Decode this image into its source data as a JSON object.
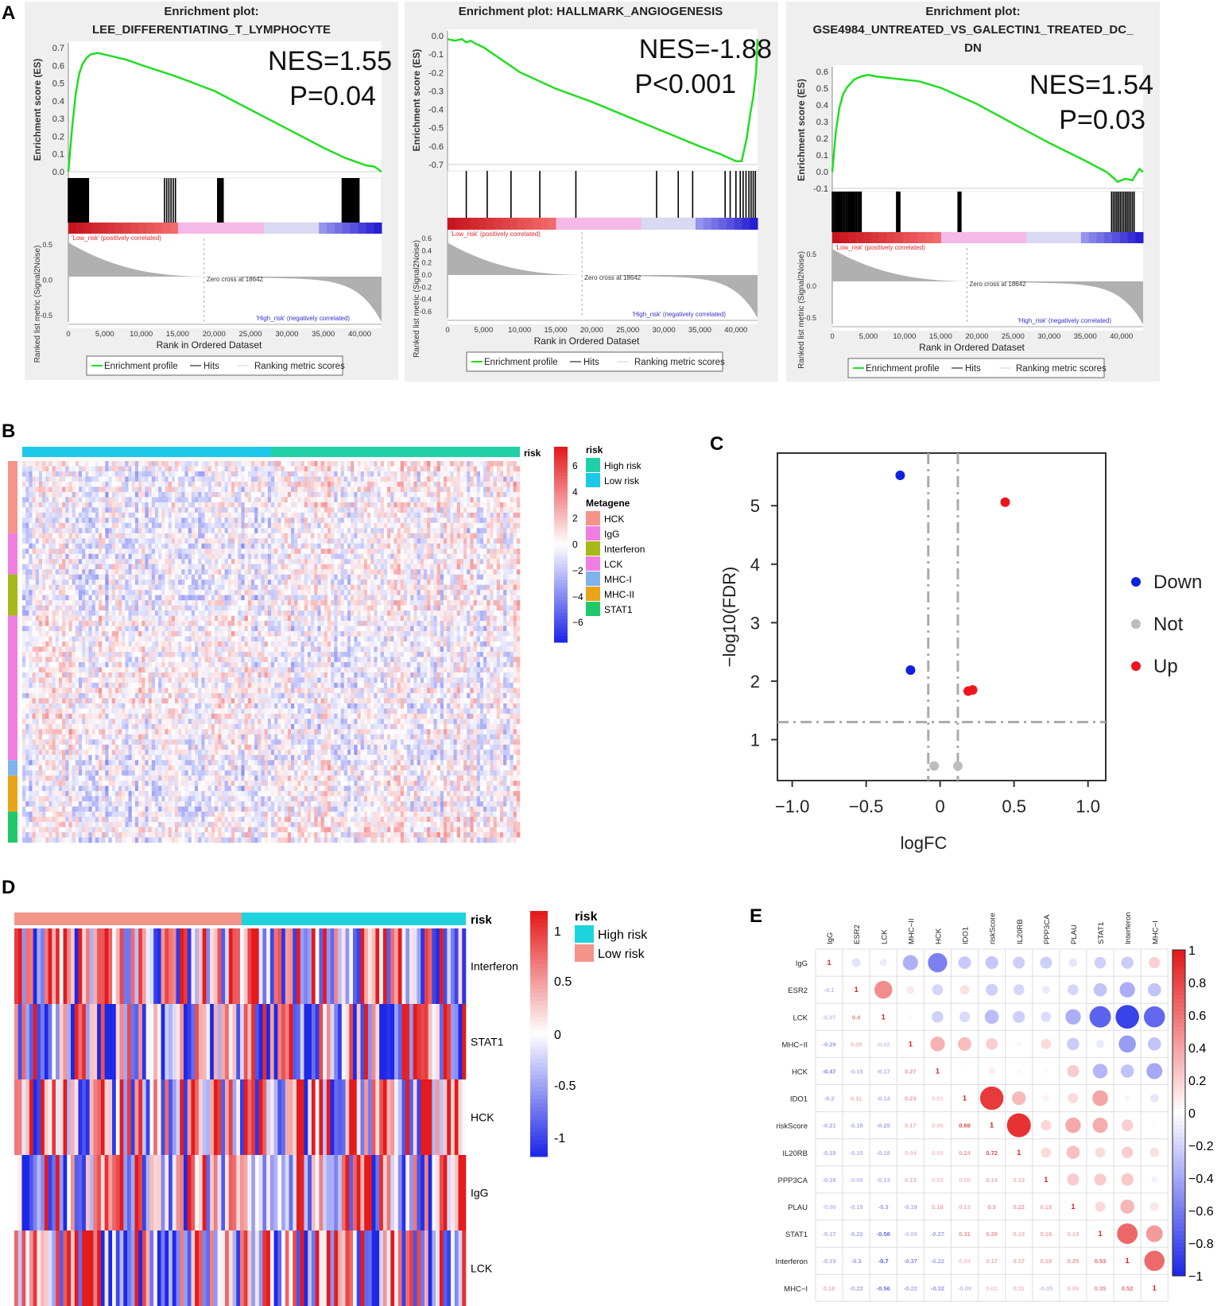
{
  "panel_labels": [
    "A",
    "B",
    "C",
    "D",
    "E"
  ],
  "colors": {
    "es_line": "#22dd22",
    "hit": "#000000",
    "metric_fill": "#b0b0b0",
    "red": "#e8262a",
    "blue": "#2630e0",
    "pink": "#f3a2e6",
    "cyan": "#1ec8e8",
    "teal": "#1fd0a8",
    "salmon": "#f5948a"
  },
  "chart_data": [
    {
      "type": "line",
      "id": "gsea1",
      "title_lines": [
        "Enrichment plot:",
        "LEE_DIFFERENTIATING_T_LYMPHOCYTE"
      ],
      "nes_text": "NES=1.55",
      "p_text": "P=0.04",
      "ylabel": "Enrichment score (ES)",
      "yticks": [
        "0.7",
        "0.6",
        "0.5",
        "0.4",
        "0.3",
        "0.2",
        "0.1",
        "0.0"
      ],
      "ylim": [
        0.0,
        0.72
      ],
      "es_x": [
        0,
        500,
        1000,
        1500,
        2000,
        2500,
        3000,
        4000,
        5000,
        6000,
        7000,
        8000,
        10000,
        15000,
        20000,
        25000,
        30000,
        35000,
        38000,
        40000,
        41000,
        42000,
        43000
      ],
      "es_y": [
        0,
        0.25,
        0.45,
        0.57,
        0.63,
        0.66,
        0.68,
        0.69,
        0.68,
        0.67,
        0.66,
        0.65,
        0.62,
        0.55,
        0.47,
        0.36,
        0.25,
        0.14,
        0.08,
        0.05,
        0.035,
        0.03,
        0.0
      ],
      "metric_ylabel": "Ranked list metric (Signal2Noise)",
      "metric_yticks": [
        "0.5",
        "0.0",
        "-0.5"
      ],
      "pos_label": "'Low_risk' (positively correlated)",
      "neg_label": "'High_risk' (negatively correlated)",
      "zero_cross": "Zero cross at 18642",
      "xlabel": "Rank in Ordered Dataset",
      "xticks": [
        "0",
        "5,000",
        "10,000",
        "15,000",
        "20,000",
        "25,000",
        "30,000",
        "35,000",
        "40,000"
      ],
      "legend": [
        "Enrichment profile",
        "Hits",
        "Ranking metric scores"
      ]
    },
    {
      "type": "line",
      "id": "gsea2",
      "title_lines": [
        "Enrichment plot: HALLMARK_ANGIOGENESIS"
      ],
      "nes_text": "NES=-1.88",
      "p_text": "P<0.001",
      "ylabel": "Enrichment score (ES)",
      "yticks": [
        "0.0",
        "-0.1",
        "-0.2",
        "-0.3",
        "-0.4",
        "-0.5",
        "-0.6",
        "-0.7"
      ],
      "ylim": [
        -0.76,
        0.02
      ],
      "es_x": [
        0,
        1000,
        2000,
        2600,
        3200,
        4000,
        5000,
        6000,
        8000,
        10000,
        15000,
        20000,
        25000,
        30000,
        35000,
        38000,
        40000,
        40800,
        41500,
        42000,
        42400,
        42800,
        43000
      ],
      "es_y": [
        0,
        -0.01,
        0.0,
        -0.02,
        -0.01,
        -0.03,
        -0.05,
        -0.08,
        -0.14,
        -0.2,
        -0.3,
        -0.38,
        -0.47,
        -0.56,
        -0.65,
        -0.7,
        -0.74,
        -0.74,
        -0.6,
        -0.45,
        -0.35,
        -0.2,
        0.0
      ],
      "metric_ylabel": "Ranked list metric (Signal2Noise)",
      "metric_yticks": [
        "0.6",
        "0.4",
        "0.2",
        "0.0",
        "-0.2",
        "-0.4",
        "-0.6"
      ],
      "pos_label": "'Low_risk' (positively correlated)",
      "neg_label": "'High_risk' (negatively correlated)",
      "zero_cross": "Zero cross at 18642",
      "xlabel": "Rank in Ordered Dataset",
      "xticks": [
        "0",
        "5,000",
        "10,000",
        "15,000",
        "20,000",
        "25,000",
        "30,000",
        "35,000",
        "40,000"
      ],
      "legend": [
        "Enrichment profile",
        "Hits",
        "Ranking metric scores"
      ]
    },
    {
      "type": "line",
      "id": "gsea3",
      "title_lines": [
        "Enrichment plot:",
        "GSE4984_UNTREATED_VS_GALECTIN1_TREATED_DC_",
        "DN"
      ],
      "nes_text": "NES=1.54",
      "p_text": "P=0.03",
      "ylabel": "Enrichment score (ES)",
      "yticks": [
        "0.6",
        "0.5",
        "0.4",
        "0.3",
        "0.2",
        "0.1",
        "0.0",
        "-0.1"
      ],
      "ylim": [
        -0.1,
        0.62
      ],
      "es_x": [
        0,
        500,
        1000,
        1500,
        2000,
        3000,
        4000,
        5000,
        6000,
        8000,
        10000,
        12000,
        15000,
        20000,
        25000,
        30000,
        35000,
        38000,
        39500,
        40500,
        41500,
        42500,
        43000
      ],
      "es_y": [
        0,
        0.25,
        0.4,
        0.48,
        0.52,
        0.57,
        0.59,
        0.6,
        0.59,
        0.58,
        0.57,
        0.56,
        0.52,
        0.42,
        0.3,
        0.18,
        0.07,
        0.0,
        -0.06,
        -0.04,
        -0.05,
        0.02,
        0.0
      ],
      "metric_ylabel": "Ranked list metric (Signal2Noise)",
      "metric_yticks": [
        "0.5",
        "0.0",
        "-0.5"
      ],
      "pos_label": "'Low_risk' (positively correlated)",
      "neg_label": "'High_risk' (negatively correlated)",
      "zero_cross": "Zero cross at 18642",
      "xlabel": "Rank in Ordered Dataset",
      "xticks": [
        "0",
        "5,000",
        "10,000",
        "15,000",
        "20,000",
        "25,000",
        "30,000",
        "35,000",
        "40,000"
      ],
      "legend": [
        "Enrichment profile",
        "Hits",
        "Ranking metric scores"
      ]
    },
    {
      "type": "heatmap",
      "id": "heatB",
      "annotation_title": "risk",
      "legend_risk_title": "risk",
      "risk_groups": [
        {
          "name": "High risk",
          "color": "#1fd0a8"
        },
        {
          "name": "Low risk",
          "color": "#1ec8e8"
        }
      ],
      "column_order": [
        "Low risk",
        "High risk"
      ],
      "legend_metagene_title": "Metagene",
      "metagenes": [
        {
          "name": "HCK",
          "color": "#f5948a",
          "rows": 14
        },
        {
          "name": "IgG",
          "color": "#f07ee0",
          "rows": 8
        },
        {
          "name": "Interferon",
          "color": "#a6b81a",
          "rows": 8
        },
        {
          "name": "LCK",
          "color": "#f07ee0",
          "rows": 28
        },
        {
          "name": "MHC-I",
          "color": "#7eb3ee",
          "rows": 3
        },
        {
          "name": "MHC-II",
          "color": "#e9a41a",
          "rows": 7
        },
        {
          "name": "STAT1",
          "color": "#1fc96a",
          "rows": 6
        }
      ],
      "scale_ticks": [
        "6",
        "4",
        "2",
        "0",
        "−2",
        "−4",
        "−6"
      ],
      "range": [
        -6,
        6
      ]
    },
    {
      "type": "scatter",
      "id": "volcano",
      "xlabel": "logFC",
      "ylabel": "−log10(FDR)",
      "xticks": [
        "−1.0",
        "−0.5",
        "0",
        "0.5",
        "1.0"
      ],
      "xtick_values": [
        -1.0,
        -0.5,
        0,
        0.5,
        1.0
      ],
      "yticks": [
        "1",
        "2",
        "3",
        "4",
        "5"
      ],
      "ytick_values": [
        1,
        2,
        3,
        4,
        5
      ],
      "xlim": [
        -1.1,
        1.12
      ],
      "ylim": [
        0.3,
        5.9
      ],
      "vlines": [
        -0.08,
        0.12
      ],
      "hline": 1.3,
      "points": [
        {
          "x": -0.27,
          "y": 5.52,
          "group": "Down"
        },
        {
          "x": -0.2,
          "y": 2.19,
          "group": "Down"
        },
        {
          "x": 0.44,
          "y": 5.06,
          "group": "Up"
        },
        {
          "x": 0.19,
          "y": 1.83,
          "group": "Up"
        },
        {
          "x": 0.22,
          "y": 1.85,
          "group": "Up"
        },
        {
          "x": -0.04,
          "y": 0.55,
          "group": "Not"
        },
        {
          "x": 0.12,
          "y": 0.55,
          "group": "Not"
        }
      ],
      "legend": [
        {
          "name": "Down",
          "color": "#1020e0"
        },
        {
          "name": "Not",
          "color": "#bdbdbd"
        },
        {
          "name": "Up",
          "color": "#f0141e"
        }
      ]
    },
    {
      "type": "heatmap",
      "id": "heatD",
      "annotation_title": "risk",
      "legend_risk_title": "risk",
      "risk_groups": [
        {
          "name": "High risk",
          "color": "#1ed4dc"
        },
        {
          "name": "Low risk",
          "color": "#f5948a"
        }
      ],
      "column_order": [
        "Low risk",
        "High risk"
      ],
      "rows": [
        "Interferon",
        "STAT1",
        "HCK",
        "IgG",
        "LCK"
      ],
      "scale_ticks": [
        "1",
        "0.5",
        "0",
        "-0.5",
        "-1"
      ],
      "range": [
        -1,
        1
      ]
    },
    {
      "type": "heatmap",
      "id": "corrE",
      "labels": [
        "IgG",
        "ESR2",
        "LCK",
        "MHC−II",
        "HCK",
        "IDO1",
        "riskScore",
        "IL20RB",
        "PPP3CA",
        "PLAU",
        "STAT1",
        "Interferon",
        "MHC−I"
      ],
      "row_labels": [
        "IgG",
        "ESR2",
        "LCK",
        "MHC−II",
        "HCK",
        "IDO1",
        "riskScore",
        "IL20RB",
        "PPP3CA",
        "PLAU",
        "STAT1",
        "Interferon",
        "MHC−I"
      ],
      "matrix": [
        [
          1,
          -0.1,
          -0.07,
          -0.29,
          -0.47,
          -0.2,
          -0.21,
          -0.18,
          -0.18,
          -0.09,
          -0.17,
          -0.19,
          0.16
        ],
        [
          -0.1,
          1,
          0.4,
          0.08,
          -0.15,
          0.11,
          -0.18,
          -0.15,
          -0.08,
          -0.15,
          -0.22,
          -0.3,
          -0.22
        ],
        [
          -0.07,
          0.4,
          1,
          -0.02,
          -0.17,
          -0.14,
          -0.25,
          -0.18,
          -0.13,
          -0.3,
          -0.58,
          -0.7,
          -0.56
        ],
        [
          -0.29,
          0.08,
          -0.02,
          1,
          0.27,
          0.23,
          0.17,
          0.04,
          0.13,
          -0.19,
          -0.08,
          -0.37,
          -0.22
        ],
        [
          -0.47,
          -0.15,
          -0.17,
          0.27,
          1,
          0.01,
          0.06,
          0.03,
          0.02,
          0.18,
          -0.27,
          -0.22,
          -0.32
        ],
        [
          -0.2,
          0.11,
          -0.14,
          0.23,
          0.01,
          1,
          0.69,
          0.24,
          0.05,
          0.13,
          0.31,
          0.04,
          -0.09
        ],
        [
          -0.21,
          -0.18,
          -0.25,
          0.17,
          0.06,
          0.69,
          1,
          0.72,
          0.14,
          0.3,
          0.29,
          0.17,
          0.02
        ],
        [
          -0.18,
          -0.15,
          -0.18,
          0.04,
          0.03,
          0.24,
          0.72,
          1,
          0.13,
          0.22,
          0.13,
          0.17,
          0.11
        ],
        [
          -0.18,
          -0.08,
          -0.13,
          0.13,
          0.02,
          0.05,
          0.14,
          0.13,
          1,
          0.18,
          0.18,
          0.19,
          -0.05
        ],
        [
          -0.09,
          -0.15,
          -0.3,
          -0.19,
          0.18,
          0.13,
          0.3,
          0.22,
          0.18,
          1,
          0.13,
          0.25,
          0.09
        ],
        [
          -0.17,
          -0.22,
          -0.58,
          -0.08,
          -0.27,
          0.31,
          0.29,
          0.13,
          0.18,
          0.13,
          1,
          0.53,
          0.35
        ],
        [
          -0.19,
          -0.3,
          -0.7,
          -0.37,
          -0.22,
          0.04,
          0.17,
          0.17,
          0.19,
          0.25,
          0.53,
          1,
          0.52
        ],
        [
          0.16,
          -0.22,
          -0.56,
          -0.22,
          -0.32,
          -0.09,
          0.02,
          0.11,
          -0.05,
          0.09,
          0.35,
          0.52,
          1
        ]
      ],
      "scale_ticks": [
        "1",
        "0.8",
        "0.6",
        "0.4",
        "0.2",
        "0",
        "−0.2",
        "−0.4",
        "−0.6",
        "−0.8",
        "−1"
      ],
      "range": [
        -1,
        1
      ]
    }
  ]
}
